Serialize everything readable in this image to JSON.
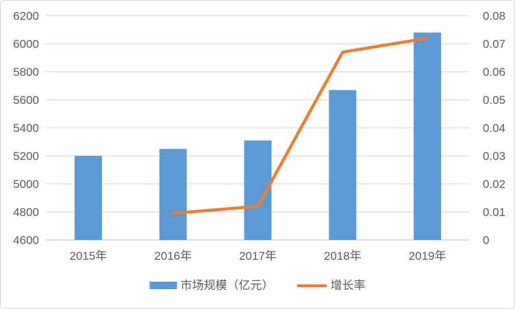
{
  "chart_data": {
    "type": "combo_bar_line",
    "title": "",
    "categories": [
      "2015年",
      "2016年",
      "2017年",
      "2018年",
      "2019年"
    ],
    "series": [
      {
        "name": "市场规模（亿元）",
        "type": "bar",
        "axis": "left",
        "color": "#5b9bd5",
        "values": [
          5200,
          5250,
          5310,
          5670,
          6080
        ]
      },
      {
        "name": "增长率",
        "type": "line",
        "axis": "right",
        "color": "#ed7d31",
        "values": [
          null,
          0.0095,
          0.012,
          0.067,
          0.072
        ]
      }
    ],
    "left_axis": {
      "min": 4600,
      "max": 6200,
      "step": 200,
      "tick_labels": [
        "4600",
        "4800",
        "5000",
        "5200",
        "5400",
        "5600",
        "5800",
        "6000",
        "6200"
      ]
    },
    "right_axis": {
      "min": 0,
      "max": 0.08,
      "step": 0.01,
      "tick_labels": [
        "0",
        "0.01",
        "0.02",
        "0.03",
        "0.04",
        "0.05",
        "0.06",
        "0.07",
        "0.08"
      ]
    },
    "grid": true,
    "legend_position": "bottom",
    "colors": {
      "gridline": "#d9d9d9",
      "axis_line": "#c9c9c9",
      "tick_text": "#595959"
    }
  }
}
